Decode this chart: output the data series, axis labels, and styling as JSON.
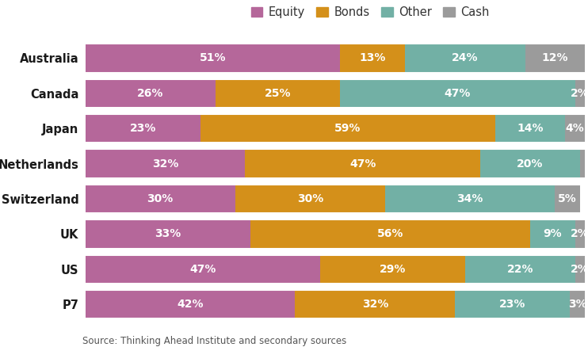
{
  "countries": [
    "Australia",
    "Canada",
    "Japan",
    "Netherlands",
    "Switzerland",
    "UK",
    "US",
    "P7"
  ],
  "equity": [
    51,
    26,
    23,
    32,
    30,
    33,
    47,
    42
  ],
  "bonds": [
    13,
    25,
    59,
    47,
    30,
    56,
    29,
    32
  ],
  "other": [
    24,
    47,
    14,
    20,
    34,
    9,
    22,
    23
  ],
  "cash": [
    12,
    2,
    4,
    1,
    5,
    2,
    2,
    3
  ],
  "colors": {
    "equity": "#b5679a",
    "bonds": "#d4901a",
    "other": "#72b0a5",
    "cash": "#9b9b9b"
  },
  "source": "Source: Thinking Ahead Institute and secondary sources",
  "legend_labels": [
    "Equity",
    "Bonds",
    "Other",
    "Cash"
  ],
  "text_color": "#ffffff",
  "bar_height": 0.82,
  "label_fontsize": 10,
  "legend_fontsize": 10.5,
  "country_fontsize": 10.5,
  "source_fontsize": 8.5
}
